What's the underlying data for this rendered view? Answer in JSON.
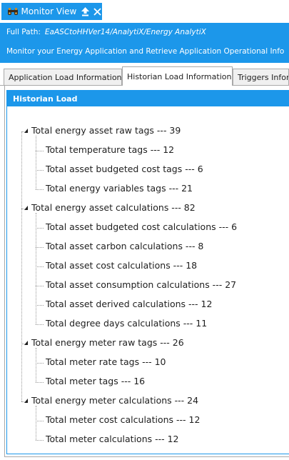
{
  "window": {
    "title": "Monitor View"
  },
  "header": {
    "path_label": "Full Path:",
    "path_value": "EaASCtoHHVer14/AnalytiX/Energy AnalytiX",
    "description": "Monitor your Energy Application and Retrieve Application Operational Info"
  },
  "tabs": [
    {
      "label": "Application Load Information"
    },
    {
      "label": "Historian Load Information"
    },
    {
      "label": "Triggers Information"
    }
  ],
  "group": {
    "title": "Historian Load"
  },
  "tree": [
    {
      "label": "Total energy asset raw tags --- 39",
      "children": [
        {
          "label": "Total temperature tags --- 12"
        },
        {
          "label": "Total asset budgeted cost tags --- 6"
        },
        {
          "label": "Total energy variables tags --- 21"
        }
      ]
    },
    {
      "label": "Total energy asset calculations --- 82",
      "children": [
        {
          "label": "Total asset budgeted cost calculations --- 6"
        },
        {
          "label": "Total asset carbon calculations --- 8"
        },
        {
          "label": "Total asset cost calculations --- 18"
        },
        {
          "label": "Total asset consumption calculations --- 27"
        },
        {
          "label": "Total asset derived calculations --- 12"
        },
        {
          "label": "Total degree days calculations --- 11"
        }
      ]
    },
    {
      "label": "Total energy meter raw tags --- 26",
      "children": [
        {
          "label": "Total meter rate  tags --- 10"
        },
        {
          "label": "Total meter tags --- 16"
        }
      ]
    },
    {
      "label": "Total energy meter calculations --- 24",
      "children": [
        {
          "label": "Total meter cost calculations --- 12"
        },
        {
          "label": "Total meter calculations --- 12"
        }
      ]
    }
  ]
}
